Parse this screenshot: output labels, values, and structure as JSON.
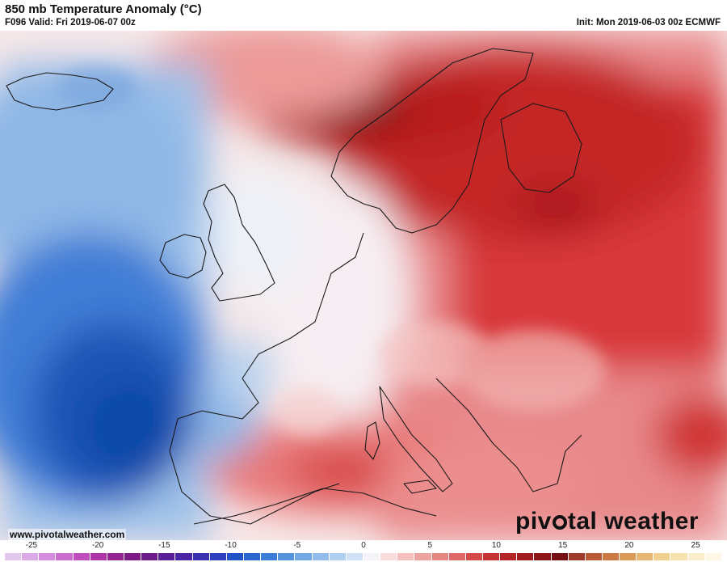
{
  "header": {
    "title": "850 mb Temperature Anomaly (°C)",
    "valid": "F096 Valid: Fri 2019-06-07 00z",
    "init": "Init: Mon 2019-06-03 00z ECMWF"
  },
  "footer": {
    "url": "www.pivotalweather.com",
    "logo_pre": "piv",
    "logo_post": "tal weather"
  },
  "colorbar": {
    "ticks": [
      "-25",
      "-20",
      "-15",
      "-10",
      "-5",
      "0",
      "5",
      "10",
      "15",
      "20",
      "25"
    ],
    "range": [
      -27,
      27
    ],
    "colors": [
      "#e2c8ec",
      "#dcaae6",
      "#d68cdc",
      "#cc6ed0",
      "#c04cbd",
      "#ad35a8",
      "#962493",
      "#7e1a86",
      "#6c1a8c",
      "#5a1e96",
      "#4a26a4",
      "#3a30b2",
      "#2c40be",
      "#2252c8",
      "#2966d0",
      "#3a7cd8",
      "#5593de",
      "#72a8e4",
      "#91bceb",
      "#b0cff0",
      "#cfe1f5",
      "#f4f4f8",
      "#f7dcdb",
      "#f3c0be",
      "#eda4a1",
      "#e68683",
      "#de6865",
      "#d34a49",
      "#c63334",
      "#b42325",
      "#a01b1e",
      "#8a1418",
      "#750f13",
      "#a03a2a",
      "#b85a36",
      "#cc7a44",
      "#dc9a58",
      "#e8b872",
      "#f0d08e",
      "#f6e2ac",
      "#faefcc",
      "#fdf7e4"
    ]
  },
  "legend_colors": {
    "strong_cold": "#0f48a8",
    "cold": "#3f7dd6",
    "cool": "#9fc2ea",
    "neutral": "#f6f4f6",
    "warm": "#f2b5b2",
    "hot": "#d8383a",
    "very_hot": "#a8181c",
    "extreme": "#6e0c0c"
  }
}
